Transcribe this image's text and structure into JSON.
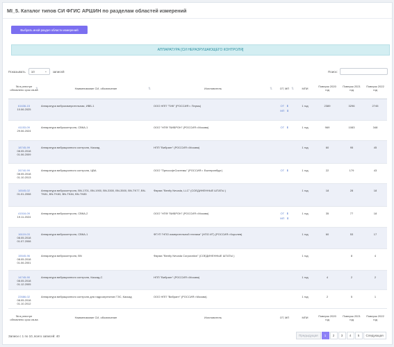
{
  "page": {
    "title": "MI_5. Каталог типов СИ ФГИС АРШИН по разделам областей измерений"
  },
  "button": {
    "label": "Выбрать иной раздел области измерений"
  },
  "banner": {
    "text": "АППАРАТУРА [СИ НЕРАЗРУШАЮЩЕГО КОНТРОЛЯ]"
  },
  "length": {
    "prefix": "Показывать",
    "value": "10",
    "suffix": "записей"
  },
  "search": {
    "label": "Поиск:",
    "value": ""
  },
  "columns": [
    "№ в реестре обновлено срок св-ва",
    "Наименование СИ, обозначение",
    "Изготовитель",
    "ОТ, МП",
    "МПИ",
    "Поверок 2020 год",
    "Поверок 2021 год",
    "Поверок 2022 год"
  ],
  "rows": [
    {
      "reg": "61636-15",
      "date1": "",
      "date2": "10.06.2025",
      "name": "Аппаратура виброизмерительная, ИВБ-1",
      "mfr": "ООО НПП \"ТИК\" (РОССИЯ г. Пермь)",
      "ot": "ОТ",
      "mp": "МП",
      "mpi": "1 год",
      "y2020": "2389",
      "y2021": "3296",
      "y2022": "2745"
    },
    {
      "reg": "41153-09",
      "date1": "",
      "date2": "29.06.2024",
      "name": "Аппаратура виброконтроля, СВКА-1",
      "mfr": "ООО \"НПФ \"ВИБРОН\" (РОССИЯ г.Москва)",
      "ot": "ОТ",
      "mp": "",
      "mpi": "1 год",
      "y2020": "969",
      "y2021": "1083",
      "y2022": "348"
    },
    {
      "reg": "18745-99",
      "date1": "08.05.2018",
      "date2": "01.06.2009",
      "name": "Аппаратура вибрационного контроля, Каскад",
      "mfr": "НПП \"Вибрант\" (РОССИЯ г.Москва)",
      "ot": "",
      "mp": "",
      "mpi": "1 год",
      "y2020": "60",
      "y2021": "95",
      "y2022": "45"
    },
    {
      "reg": "26740-99",
      "date1": "08.05.2018",
      "date2": "01.10.2013",
      "name": "Аппаратура вибрационного контроля, ЦВА",
      "mfr": "ООО \"ПрессофтСистемы\" (РОССИЯ г. Екатеринбург)",
      "ot": "ОТ",
      "mp": "",
      "mpi": "1 год",
      "y2020": "22",
      "y2021": "179",
      "y2022": "43"
    },
    {
      "reg": "16545-02",
      "date1": "",
      "date2": "01.01.2008",
      "name": "Аппаратура виброконтроля, BN-1701, BN-1900, BN-3300, BN-3500, BN-TK77, BN-TK81, BN-TK83, BN-TK84, BN-TK85",
      "mfr": "Фирма \"Bently Nevada, LLC\" (СОЕДИНЕННЫЕ ШТАТЫ )",
      "ot": "",
      "mp": "",
      "mpi": "1 год",
      "y2020": "18",
      "y2021": "28",
      "y2022": "18"
    },
    {
      "reg": "41516-09",
      "date1": "",
      "date2": "19.11.2024",
      "name": "Аппаратура виброконтроля, СВКА-2",
      "mfr": "ООО \"НПФ \"ВИБРОН\" (РОССИЯ г.Москва)",
      "ot": "ОТ",
      "mp": "МП",
      "mpi": "1 год",
      "y2020": "35",
      "y2021": "77",
      "y2022": "18"
    },
    {
      "reg": "16119-03",
      "date1": "08.05.2018",
      "date2": "01.07.2008",
      "name": "Аппаратура виброконтроля, СВКА-1",
      "mfr": "ФГУП \"НПО измерительной техники\" (НПО ИТ) (РОССИЯ г.Королев)",
      "ot": "",
      "mp": "",
      "mpi": "1 год",
      "y2020": "60",
      "y2021": "53",
      "y2022": "17"
    },
    {
      "reg": "15545-96",
      "date1": "08.05.2018",
      "date2": "01.06.2001",
      "name": "Аппаратура виброконтроля, BN",
      "mfr": "Фирма \"Bently Nevada Corporation\" (СОЕДИНЕННЫЕ ШТАТЫ )",
      "ot": "",
      "mp": "",
      "mpi": "1 год",
      "y2020": "",
      "y2021": "8",
      "y2022": "4"
    },
    {
      "reg": "14745-90",
      "date1": "08.05.2018",
      "date2": "01.12.2005",
      "name": "Аппаратура вибрационного контроля, Каскад-С",
      "mfr": "НПП \"Вибрант\" (РОССИЯ г.Москва)",
      "ot": "",
      "mp": "",
      "mpi": "1 год",
      "y2020": "4",
      "y2021": "2",
      "y2022": "2"
    },
    {
      "reg": "22686-02",
      "date1": "08.05.2018",
      "date2": "01.10.2012",
      "name": "Аппаратура вибрационного контроля для гидроагрегатов ГЭС, Каскад",
      "mfr": "ООО НПП \"Вибрант\" (РОССИЯ г.Москва)",
      "ot": "",
      "mp": "",
      "mpi": "1 год",
      "y2020": "2",
      "y2021": "5",
      "y2022": "1"
    }
  ],
  "footer": {
    "info": "Записи с 1 по 10, всего записей: 40"
  },
  "pagination": {
    "prev": "Предыдущая",
    "pages": [
      "1",
      "2",
      "3",
      "4",
      "5"
    ],
    "next": "Следующая"
  }
}
